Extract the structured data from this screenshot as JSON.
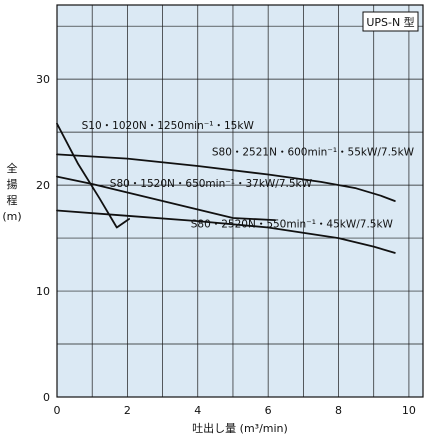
{
  "chart_data": {
    "type": "line",
    "model_tag": "UPS-N 型",
    "xlabel": "吐出し量 (m³/min)",
    "ylabel": [
      "全",
      "揚",
      "程",
      "(m)"
    ],
    "xlim": [
      0,
      10.4
    ],
    "ylim": [
      0,
      37
    ],
    "xticks": [
      0,
      2,
      4,
      6,
      8,
      10
    ],
    "yticks": [
      0,
      10,
      20,
      30
    ],
    "grid": true,
    "background": "#dbe9f4",
    "line_color": "#111111",
    "series": [
      {
        "name": "S10・1020N・1250min⁻¹・15kW",
        "label_x": 0.7,
        "label_y": 25.3,
        "points": [
          [
            0,
            25.8
          ],
          [
            0.6,
            22.0
          ],
          [
            1.2,
            18.8
          ],
          [
            1.7,
            16.0
          ],
          [
            2.05,
            16.8
          ]
        ]
      },
      {
        "name": "S80・2521N・600min⁻¹・55kW/7.5kW",
        "label_x": 4.4,
        "label_y": 22.8,
        "points": [
          [
            0,
            22.9
          ],
          [
            2,
            22.5
          ],
          [
            4,
            21.8
          ],
          [
            6,
            21.0
          ],
          [
            7.5,
            20.3
          ],
          [
            8.5,
            19.7
          ],
          [
            9.2,
            19.0
          ],
          [
            9.6,
            18.5
          ]
        ]
      },
      {
        "name": "S80・1520N・650min⁻¹・37kW/7.5kW",
        "label_x": 1.5,
        "label_y": 19.8,
        "points": [
          [
            0,
            20.8
          ],
          [
            1,
            20.1
          ],
          [
            2,
            19.3
          ],
          [
            3,
            18.5
          ],
          [
            4,
            17.7
          ],
          [
            5,
            16.9
          ],
          [
            6.2,
            16.7
          ]
        ]
      },
      {
        "name": "S80・2520N・550min⁻¹・45kW/7.5kW",
        "label_x": 3.8,
        "label_y": 16.0,
        "points": [
          [
            0,
            17.6
          ],
          [
            2,
            17.1
          ],
          [
            4,
            16.6
          ],
          [
            6,
            16.0
          ],
          [
            8,
            15.0
          ],
          [
            9,
            14.2
          ],
          [
            9.6,
            13.6
          ]
        ]
      }
    ]
  }
}
